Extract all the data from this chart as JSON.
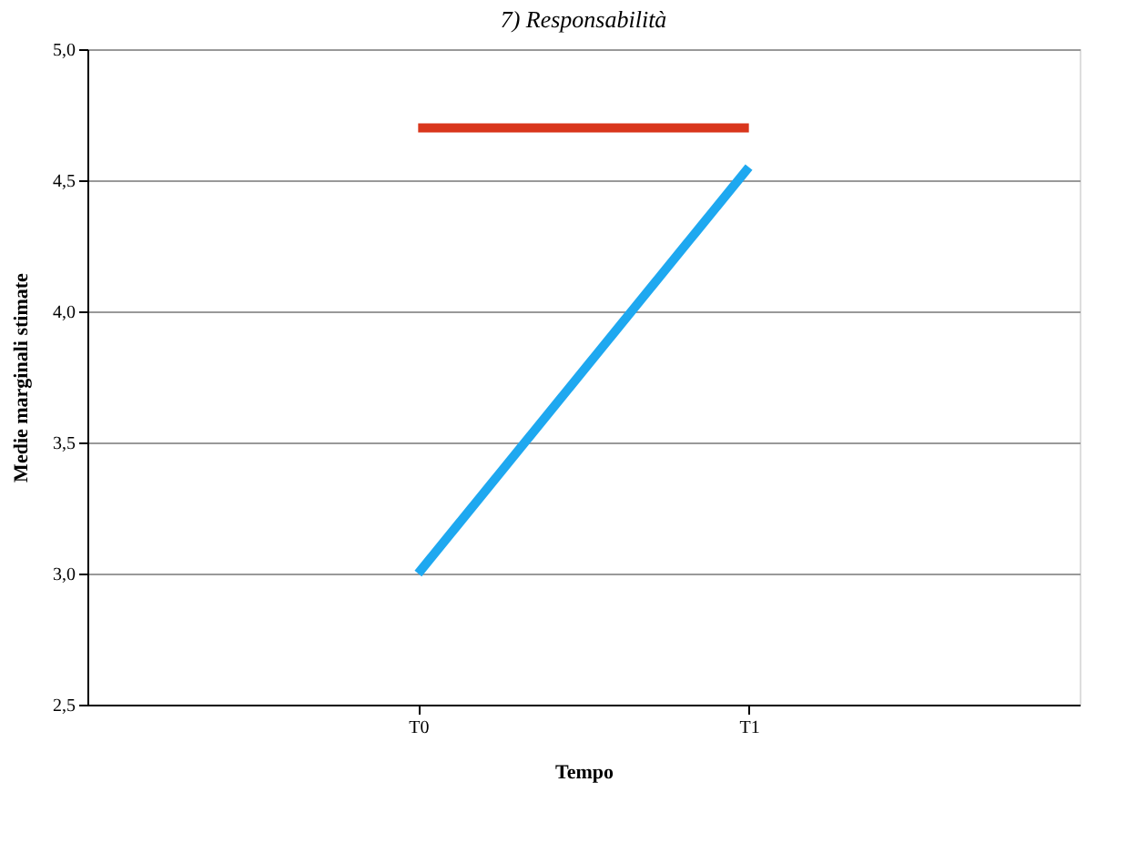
{
  "chart_data": {
    "type": "line",
    "title": "7) Responsabilità",
    "xlabel": "Tempo",
    "ylabel": "Medie marginali stimate",
    "categories": [
      "T0",
      "T1"
    ],
    "series": [
      {
        "color": "#d9361c",
        "values": [
          4.7,
          4.7
        ]
      },
      {
        "color": "#1ea8f0",
        "values": [
          3.0,
          4.55
        ]
      }
    ],
    "ylim": [
      2.5,
      5.0
    ],
    "yticks": [
      {
        "value": 2.5,
        "label": "2,5"
      },
      {
        "value": 3.0,
        "label": "3,0"
      },
      {
        "value": 3.5,
        "label": "3,5"
      },
      {
        "value": 4.0,
        "label": "4,0"
      },
      {
        "value": 4.5,
        "label": "4,5"
      },
      {
        "value": 5.0,
        "label": "5,0"
      }
    ],
    "grid": "y",
    "marker": "none",
    "line_style": "solid"
  }
}
